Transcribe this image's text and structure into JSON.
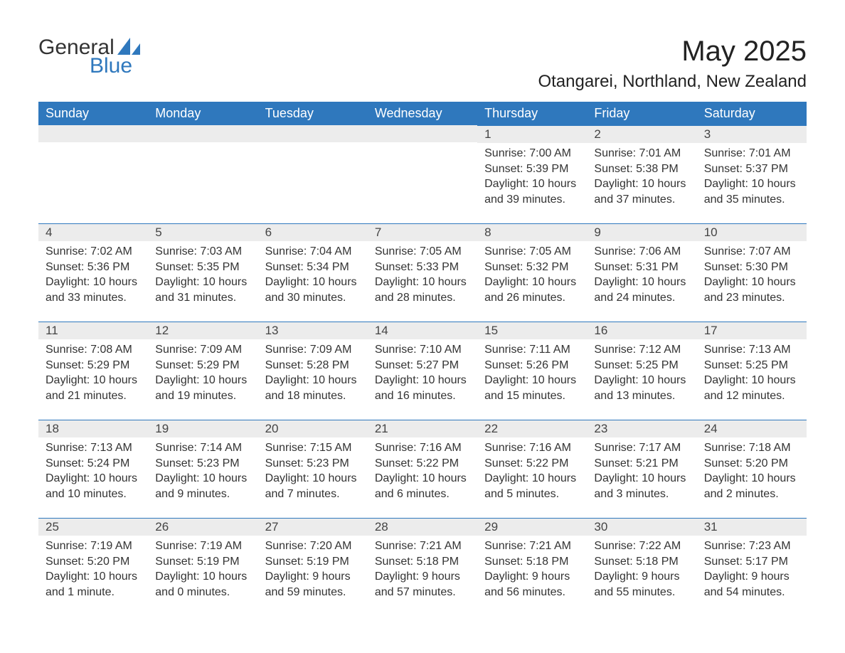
{
  "logo": {
    "general": "General",
    "blue": "Blue",
    "sail_color": "#2f78bd"
  },
  "title": "May 2025",
  "location": "Otangarei, Northland, New Zealand",
  "colors": {
    "header_bg": "#2f78bd",
    "header_text": "#ffffff",
    "daynum_bg": "#ececec",
    "border_top": "#2f78bd",
    "body_text": "#333333"
  },
  "typography": {
    "title_fontsize": 40,
    "location_fontsize": 24,
    "header_fontsize": 18,
    "body_fontsize": 16
  },
  "weekdays": [
    "Sunday",
    "Monday",
    "Tuesday",
    "Wednesday",
    "Thursday",
    "Friday",
    "Saturday"
  ],
  "weeks": [
    [
      null,
      null,
      null,
      null,
      {
        "d": "1",
        "sr": "Sunrise: 7:00 AM",
        "ss": "Sunset: 5:39 PM",
        "dl1": "Daylight: 10 hours",
        "dl2": "and 39 minutes."
      },
      {
        "d": "2",
        "sr": "Sunrise: 7:01 AM",
        "ss": "Sunset: 5:38 PM",
        "dl1": "Daylight: 10 hours",
        "dl2": "and 37 minutes."
      },
      {
        "d": "3",
        "sr": "Sunrise: 7:01 AM",
        "ss": "Sunset: 5:37 PM",
        "dl1": "Daylight: 10 hours",
        "dl2": "and 35 minutes."
      }
    ],
    [
      {
        "d": "4",
        "sr": "Sunrise: 7:02 AM",
        "ss": "Sunset: 5:36 PM",
        "dl1": "Daylight: 10 hours",
        "dl2": "and 33 minutes."
      },
      {
        "d": "5",
        "sr": "Sunrise: 7:03 AM",
        "ss": "Sunset: 5:35 PM",
        "dl1": "Daylight: 10 hours",
        "dl2": "and 31 minutes."
      },
      {
        "d": "6",
        "sr": "Sunrise: 7:04 AM",
        "ss": "Sunset: 5:34 PM",
        "dl1": "Daylight: 10 hours",
        "dl2": "and 30 minutes."
      },
      {
        "d": "7",
        "sr": "Sunrise: 7:05 AM",
        "ss": "Sunset: 5:33 PM",
        "dl1": "Daylight: 10 hours",
        "dl2": "and 28 minutes."
      },
      {
        "d": "8",
        "sr": "Sunrise: 7:05 AM",
        "ss": "Sunset: 5:32 PM",
        "dl1": "Daylight: 10 hours",
        "dl2": "and 26 minutes."
      },
      {
        "d": "9",
        "sr": "Sunrise: 7:06 AM",
        "ss": "Sunset: 5:31 PM",
        "dl1": "Daylight: 10 hours",
        "dl2": "and 24 minutes."
      },
      {
        "d": "10",
        "sr": "Sunrise: 7:07 AM",
        "ss": "Sunset: 5:30 PM",
        "dl1": "Daylight: 10 hours",
        "dl2": "and 23 minutes."
      }
    ],
    [
      {
        "d": "11",
        "sr": "Sunrise: 7:08 AM",
        "ss": "Sunset: 5:29 PM",
        "dl1": "Daylight: 10 hours",
        "dl2": "and 21 minutes."
      },
      {
        "d": "12",
        "sr": "Sunrise: 7:09 AM",
        "ss": "Sunset: 5:29 PM",
        "dl1": "Daylight: 10 hours",
        "dl2": "and 19 minutes."
      },
      {
        "d": "13",
        "sr": "Sunrise: 7:09 AM",
        "ss": "Sunset: 5:28 PM",
        "dl1": "Daylight: 10 hours",
        "dl2": "and 18 minutes."
      },
      {
        "d": "14",
        "sr": "Sunrise: 7:10 AM",
        "ss": "Sunset: 5:27 PM",
        "dl1": "Daylight: 10 hours",
        "dl2": "and 16 minutes."
      },
      {
        "d": "15",
        "sr": "Sunrise: 7:11 AM",
        "ss": "Sunset: 5:26 PM",
        "dl1": "Daylight: 10 hours",
        "dl2": "and 15 minutes."
      },
      {
        "d": "16",
        "sr": "Sunrise: 7:12 AM",
        "ss": "Sunset: 5:25 PM",
        "dl1": "Daylight: 10 hours",
        "dl2": "and 13 minutes."
      },
      {
        "d": "17",
        "sr": "Sunrise: 7:13 AM",
        "ss": "Sunset: 5:25 PM",
        "dl1": "Daylight: 10 hours",
        "dl2": "and 12 minutes."
      }
    ],
    [
      {
        "d": "18",
        "sr": "Sunrise: 7:13 AM",
        "ss": "Sunset: 5:24 PM",
        "dl1": "Daylight: 10 hours",
        "dl2": "and 10 minutes."
      },
      {
        "d": "19",
        "sr": "Sunrise: 7:14 AM",
        "ss": "Sunset: 5:23 PM",
        "dl1": "Daylight: 10 hours",
        "dl2": "and 9 minutes."
      },
      {
        "d": "20",
        "sr": "Sunrise: 7:15 AM",
        "ss": "Sunset: 5:23 PM",
        "dl1": "Daylight: 10 hours",
        "dl2": "and 7 minutes."
      },
      {
        "d": "21",
        "sr": "Sunrise: 7:16 AM",
        "ss": "Sunset: 5:22 PM",
        "dl1": "Daylight: 10 hours",
        "dl2": "and 6 minutes."
      },
      {
        "d": "22",
        "sr": "Sunrise: 7:16 AM",
        "ss": "Sunset: 5:22 PM",
        "dl1": "Daylight: 10 hours",
        "dl2": "and 5 minutes."
      },
      {
        "d": "23",
        "sr": "Sunrise: 7:17 AM",
        "ss": "Sunset: 5:21 PM",
        "dl1": "Daylight: 10 hours",
        "dl2": "and 3 minutes."
      },
      {
        "d": "24",
        "sr": "Sunrise: 7:18 AM",
        "ss": "Sunset: 5:20 PM",
        "dl1": "Daylight: 10 hours",
        "dl2": "and 2 minutes."
      }
    ],
    [
      {
        "d": "25",
        "sr": "Sunrise: 7:19 AM",
        "ss": "Sunset: 5:20 PM",
        "dl1": "Daylight: 10 hours",
        "dl2": "and 1 minute."
      },
      {
        "d": "26",
        "sr": "Sunrise: 7:19 AM",
        "ss": "Sunset: 5:19 PM",
        "dl1": "Daylight: 10 hours",
        "dl2": "and 0 minutes."
      },
      {
        "d": "27",
        "sr": "Sunrise: 7:20 AM",
        "ss": "Sunset: 5:19 PM",
        "dl1": "Daylight: 9 hours",
        "dl2": "and 59 minutes."
      },
      {
        "d": "28",
        "sr": "Sunrise: 7:21 AM",
        "ss": "Sunset: 5:18 PM",
        "dl1": "Daylight: 9 hours",
        "dl2": "and 57 minutes."
      },
      {
        "d": "29",
        "sr": "Sunrise: 7:21 AM",
        "ss": "Sunset: 5:18 PM",
        "dl1": "Daylight: 9 hours",
        "dl2": "and 56 minutes."
      },
      {
        "d": "30",
        "sr": "Sunrise: 7:22 AM",
        "ss": "Sunset: 5:18 PM",
        "dl1": "Daylight: 9 hours",
        "dl2": "and 55 minutes."
      },
      {
        "d": "31",
        "sr": "Sunrise: 7:23 AM",
        "ss": "Sunset: 5:17 PM",
        "dl1": "Daylight: 9 hours",
        "dl2": "and 54 minutes."
      }
    ]
  ]
}
